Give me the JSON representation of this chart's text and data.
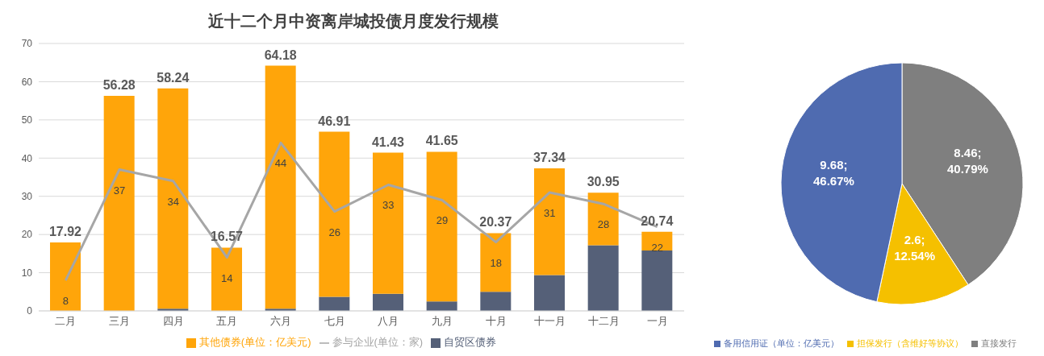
{
  "chart_data": [
    {
      "type": "bar",
      "title": "近十二个月中资离岸城投债月度发行规模",
      "categories": [
        "二月",
        "三月",
        "四月",
        "五月",
        "六月",
        "七月",
        "八月",
        "九月",
        "十月",
        "十一月",
        "十二月",
        "一月"
      ],
      "stacked": true,
      "series": [
        {
          "name": "自贸区债券",
          "type": "bar",
          "color": "#556078",
          "values": [
            0,
            0,
            0.6,
            0,
            0.6,
            3.7,
            4.5,
            2.5,
            5,
            9.4,
            17.2,
            15.8
          ]
        },
        {
          "name": "其他债券(单位：亿美元)",
          "type": "bar",
          "color": "#ffa50a",
          "values": [
            17.92,
            56.28,
            57.64,
            16.57,
            63.58,
            43.21,
            36.93,
            39.15,
            15.37,
            27.94,
            13.75,
            4.94
          ]
        },
        {
          "name": "参与企业(单位：家)",
          "type": "line",
          "color": "#a6a6a6",
          "values": [
            8,
            37,
            34,
            14,
            44,
            26,
            33,
            29,
            18,
            31,
            28,
            22
          ],
          "value_labels": [
            "8",
            "37",
            "34",
            "14",
            "44",
            "26",
            "33",
            "29",
            "18",
            "31",
            "28",
            "22"
          ]
        }
      ],
      "totals": [
        "17.92",
        "56.28",
        "58.24",
        "16.57",
        "64.18",
        "46.91",
        "41.43",
        "41.65",
        "20.37",
        "37.34",
        "30.95",
        "20.74"
      ],
      "ylim": [
        0,
        70
      ],
      "yticks": [
        0,
        10,
        20,
        30,
        40,
        50,
        60,
        70
      ],
      "grid": "y",
      "legend": "bottom",
      "marker": "none",
      "line_style": "solid"
    },
    {
      "type": "pie",
      "categories": [
        "直接发行",
        "担保发行（含维好等协议）",
        "备用信用证（单位：亿美元）"
      ],
      "values": [
        8.46,
        2.6,
        9.68
      ],
      "colors": [
        "#7f7f7f",
        "#f5c000",
        "#4f6bb0"
      ],
      "value_labels": [
        "8.46;\n40.79%",
        "2.6;\n12.54%",
        "9.68;\n46.67%"
      ],
      "legend": "bottom"
    }
  ]
}
